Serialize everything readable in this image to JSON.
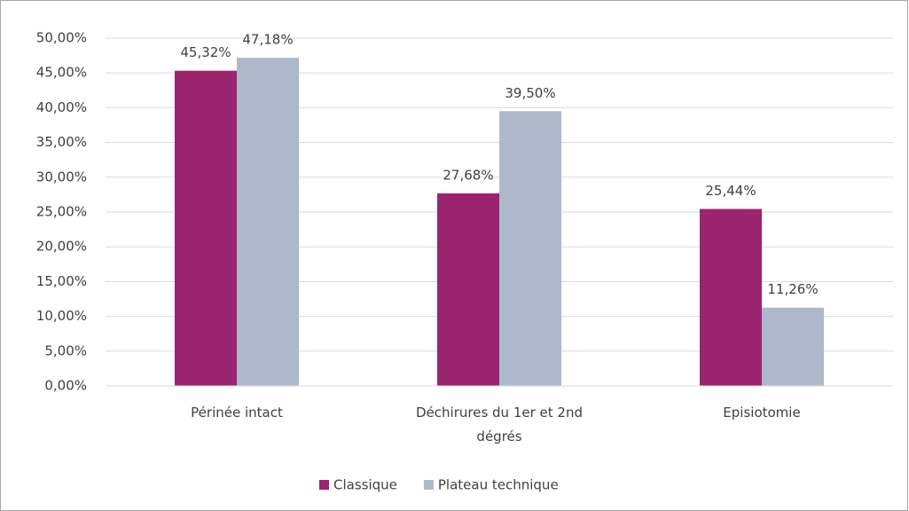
{
  "chart_data": {
    "type": "bar",
    "categories": [
      "Périnée intact",
      "Déchirures du 1er et 2nd dégrés",
      "Episiotomie"
    ],
    "series": [
      {
        "name": "Classique",
        "color": "#9b2470",
        "values": [
          45.32,
          27.68,
          25.44
        ],
        "value_labels": [
          "45,32%",
          "27,68%",
          "25,44%"
        ]
      },
      {
        "name": "Plateau technique",
        "color": "#adb9ca",
        "values": [
          47.18,
          39.5,
          11.26
        ],
        "value_labels": [
          "47,18%",
          "39,50%",
          "11,26%"
        ]
      }
    ],
    "ylim": [
      0,
      50
    ],
    "yticks": [
      {
        "value": 0,
        "label": "0,00%"
      },
      {
        "value": 5,
        "label": "5,00%"
      },
      {
        "value": 10,
        "label": "10,00%"
      },
      {
        "value": 15,
        "label": "15,00%"
      },
      {
        "value": 20,
        "label": "20,00%"
      },
      {
        "value": 25,
        "label": "25,00%"
      },
      {
        "value": 30,
        "label": "30,00%"
      },
      {
        "value": 35,
        "label": "35,00%"
      },
      {
        "value": 40,
        "label": "40,00%"
      },
      {
        "value": 45,
        "label": "45,00%"
      },
      {
        "value": 50,
        "label": "50,00%"
      }
    ],
    "grid": true,
    "legend": "bottom"
  }
}
